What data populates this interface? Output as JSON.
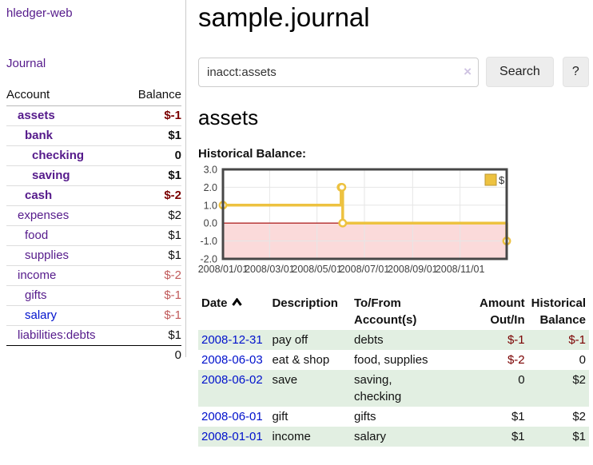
{
  "colors": {
    "link_purple": "#551a8b",
    "link_blue": "#0011cc",
    "neg_strong": "#7a0000",
    "neg_soft": "#c05a5a",
    "row_green": "#e2efe2",
    "btn_bg": "#ededed",
    "grid": "#e6e6e6",
    "chart_border": "#474747",
    "tick_label": "#3f3f3f"
  },
  "app": {
    "brand": "hledger-web"
  },
  "sidebar": {
    "nav": {
      "journal_label": "Journal"
    },
    "table": {
      "headers": [
        "Account",
        "Balance"
      ],
      "rows": [
        {
          "account": "assets",
          "balance": "$-1",
          "level": 1,
          "bold": true,
          "neg": "strong"
        },
        {
          "account": "bank",
          "balance": "$1",
          "level": 2,
          "bold": true
        },
        {
          "account": "checking",
          "balance": "0",
          "level": 3,
          "bold": true
        },
        {
          "account": "saving",
          "balance": "$1",
          "level": 3,
          "bold": true
        },
        {
          "account": "cash",
          "balance": "$-2",
          "level": 2,
          "bold": true,
          "neg": "strong"
        },
        {
          "account": "expenses",
          "balance": "$2",
          "level": 1
        },
        {
          "account": "food",
          "balance": "$1",
          "level": 2
        },
        {
          "account": "supplies",
          "balance": "$1",
          "level": 2
        },
        {
          "account": "income",
          "balance": "$-2",
          "level": 1,
          "neg": "soft"
        },
        {
          "account": "gifts",
          "balance": "$-1",
          "level": 2,
          "neg": "soft"
        },
        {
          "account": "salary",
          "balance": "$-1",
          "level": 2,
          "neg": "soft",
          "blue": true
        },
        {
          "account": "liabilities:debts",
          "balance": "$1",
          "level": 1
        }
      ],
      "total": "0"
    }
  },
  "header": {
    "title": "sample.journal"
  },
  "search": {
    "value": "inacct:assets",
    "clear_icon": "×",
    "search_label": "Search",
    "help_label": "?"
  },
  "account_page": {
    "title": "assets",
    "chart_label": "Historical Balance:"
  },
  "chart_data": {
    "type": "line",
    "step": true,
    "title": "Historical Balance of assets",
    "xlim": [
      "2008/01/01",
      "2008/12/31"
    ],
    "ylim": [
      -2,
      3
    ],
    "x_ticks": [
      "2008/01/01",
      "2008/03/01",
      "2008/05/01",
      "2008/07/01",
      "2008/09/01",
      "2008/11/01"
    ],
    "y_ticks": [
      3.0,
      2.0,
      1.0,
      0.0,
      -1.0,
      -2.0
    ],
    "grid": true,
    "legend_position": "top-right",
    "negative_region_color": "#fbdada",
    "zero_line_color": "#a60000",
    "series": [
      {
        "name": "$",
        "color": "#edc240",
        "points": [
          [
            "2008/01/01",
            1
          ],
          [
            "2008/06/01",
            2
          ],
          [
            "2008/06/02",
            2
          ],
          [
            "2008/06/03",
            0
          ],
          [
            "2008/12/31",
            -1
          ]
        ]
      }
    ]
  },
  "register": {
    "headers": [
      "Date",
      "Description",
      "To/From\nAccount(s)",
      "Amount\nOut/In",
      "Historical\nBalance"
    ],
    "rows": [
      {
        "date": "2008-12-31",
        "description": "pay off",
        "accounts": "debts",
        "amount": "$-1",
        "balance": "$-1",
        "amount_neg": true,
        "balance_neg": true
      },
      {
        "date": "2008-06-03",
        "description": "eat & shop",
        "accounts": "food, supplies",
        "amount": "$-2",
        "balance": "0",
        "amount_neg": true,
        "balance_neg": false
      },
      {
        "date": "2008-06-02",
        "description": "save",
        "accounts": "saving,\nchecking",
        "amount": "0",
        "balance": "$2",
        "amount_neg": false,
        "balance_neg": false
      },
      {
        "date": "2008-06-01",
        "description": "gift",
        "accounts": "gifts",
        "amount": "$1",
        "balance": "$2",
        "amount_neg": false,
        "balance_neg": false
      },
      {
        "date": "2008-01-01",
        "description": "income",
        "accounts": "salary",
        "amount": "$1",
        "balance": "$1",
        "amount_neg": false,
        "balance_neg": false
      }
    ]
  }
}
